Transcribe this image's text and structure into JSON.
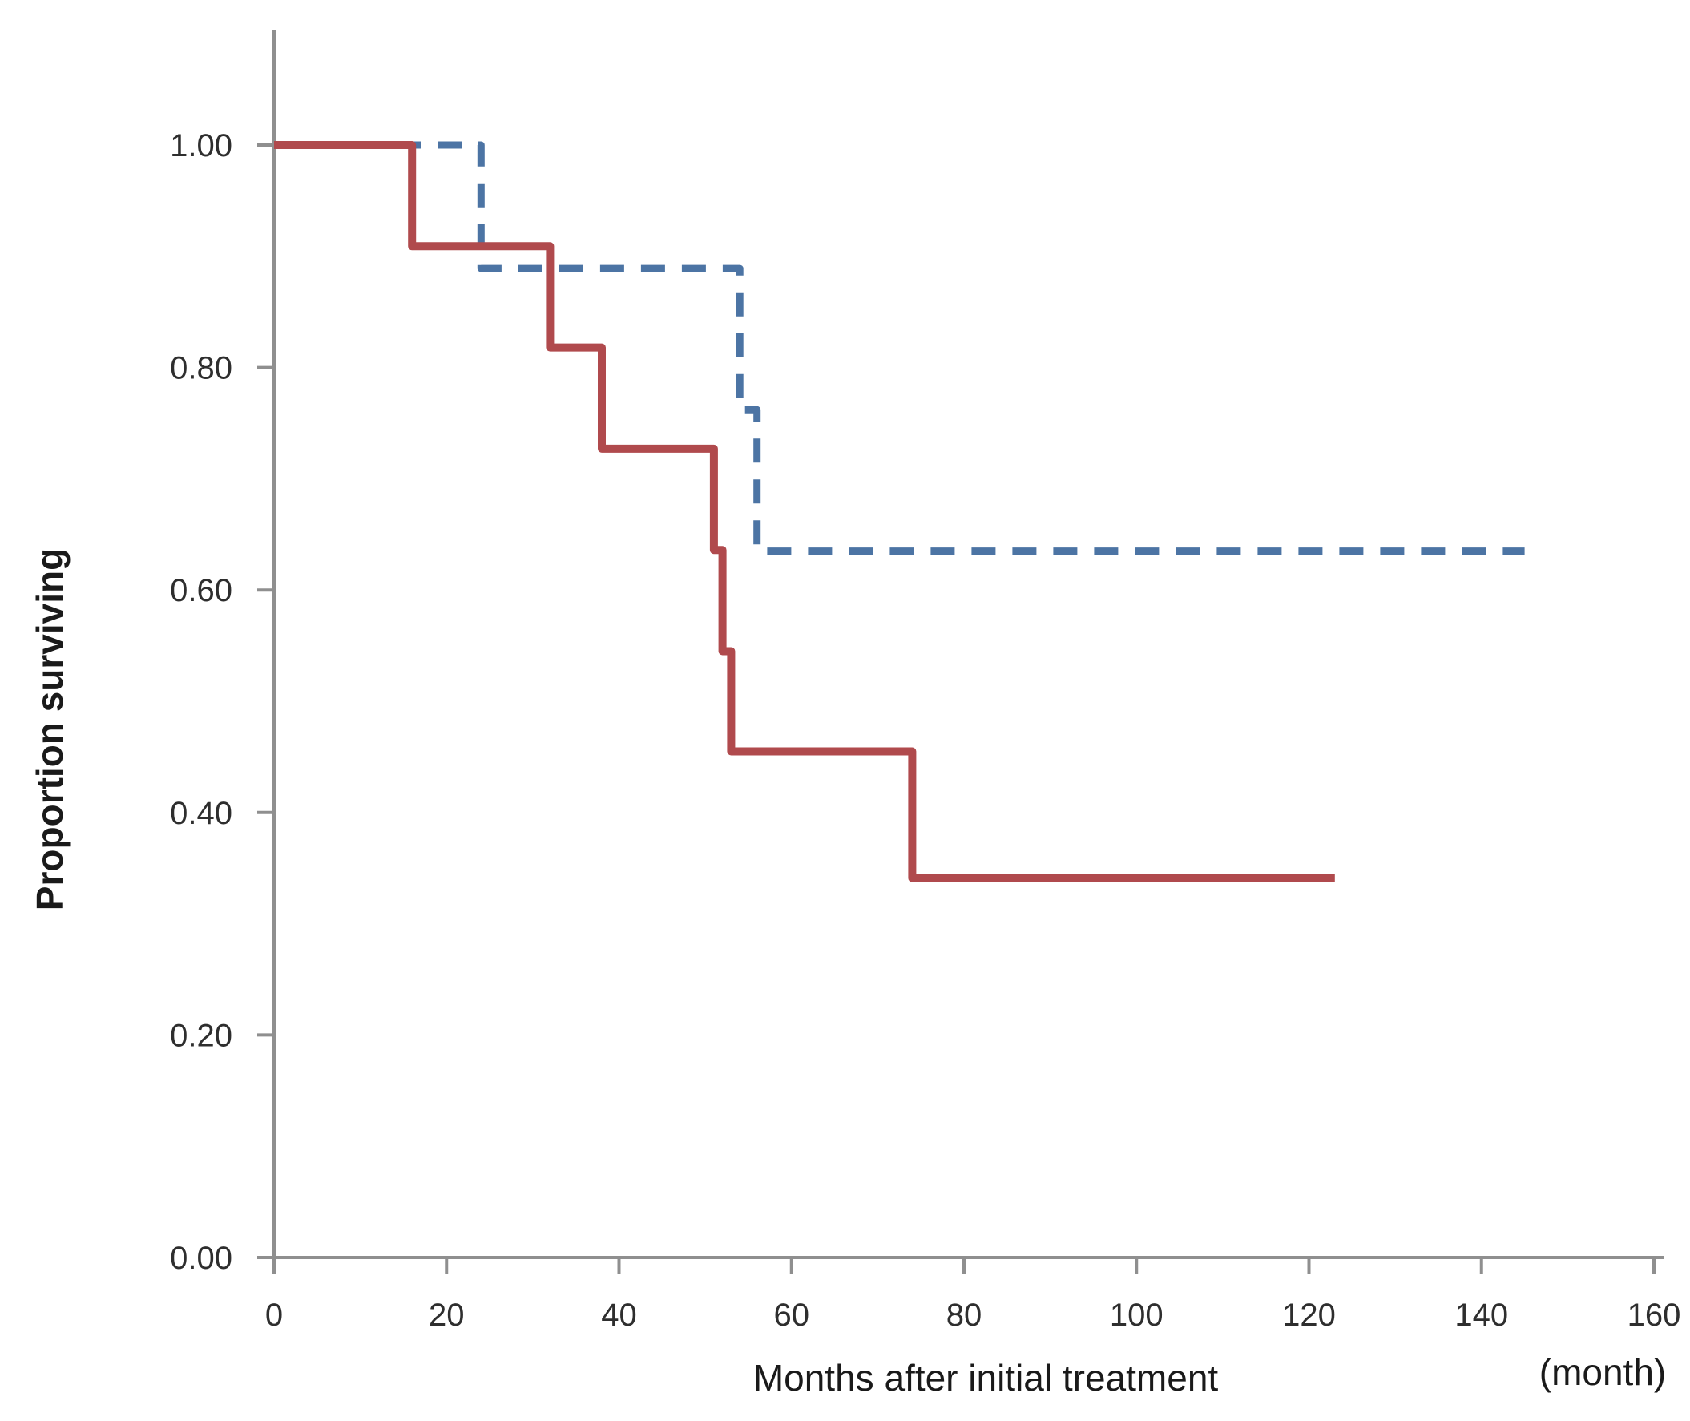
{
  "figure": {
    "background_color": "#ffffff",
    "axis_color": "#8f8f8f",
    "tick_label_color": "#2e2e2e",
    "y_axis_title": "Proportion surviving",
    "x_axis_title": "Months after initial treatment",
    "x_axis_unit_label": "(month)"
  },
  "chart_data": {
    "type": "line",
    "subtype": "kaplan-meier-step",
    "title": "",
    "xlabel": "Months after initial treatment",
    "xlabel_unit": "(month)",
    "ylabel": "Proportion surviving",
    "xlim": [
      0,
      160
    ],
    "ylim": [
      0.0,
      1.0
    ],
    "grid": false,
    "legend": "none",
    "xticks": [
      0,
      20,
      40,
      60,
      80,
      100,
      120,
      140,
      160
    ],
    "xtick_labels": [
      "0",
      "20",
      "40",
      "60",
      "80",
      "100",
      "120",
      "140",
      "160"
    ],
    "yticks": [
      1.0,
      0.8,
      0.6,
      0.4,
      0.2,
      0.0
    ],
    "ytick_labels": [
      "1.00",
      "0.80",
      "0.60",
      "0.40",
      "0.20",
      "0.00"
    ],
    "series": [
      {
        "name": "blue-dashed-group",
        "color": "#4c74a4",
        "line_style": "dashed",
        "line_width": 9,
        "points": [
          [
            0,
            1.0
          ],
          [
            24,
            1.0
          ],
          [
            24,
            0.889
          ],
          [
            54,
            0.889
          ],
          [
            54,
            0.762
          ],
          [
            56,
            0.762
          ],
          [
            56,
            0.635
          ],
          [
            145,
            0.635
          ]
        ]
      },
      {
        "name": "red-solid-group",
        "color": "#b04a4d",
        "line_style": "solid",
        "line_width": 10,
        "points": [
          [
            0,
            1.0
          ],
          [
            16,
            1.0
          ],
          [
            16,
            0.909
          ],
          [
            32,
            0.909
          ],
          [
            32,
            0.818
          ],
          [
            38,
            0.818
          ],
          [
            38,
            0.727
          ],
          [
            51,
            0.727
          ],
          [
            51,
            0.636
          ],
          [
            52,
            0.636
          ],
          [
            52,
            0.545
          ],
          [
            53,
            0.545
          ],
          [
            53,
            0.455
          ],
          [
            74,
            0.455
          ],
          [
            74,
            0.341
          ],
          [
            123,
            0.341
          ]
        ]
      }
    ]
  }
}
